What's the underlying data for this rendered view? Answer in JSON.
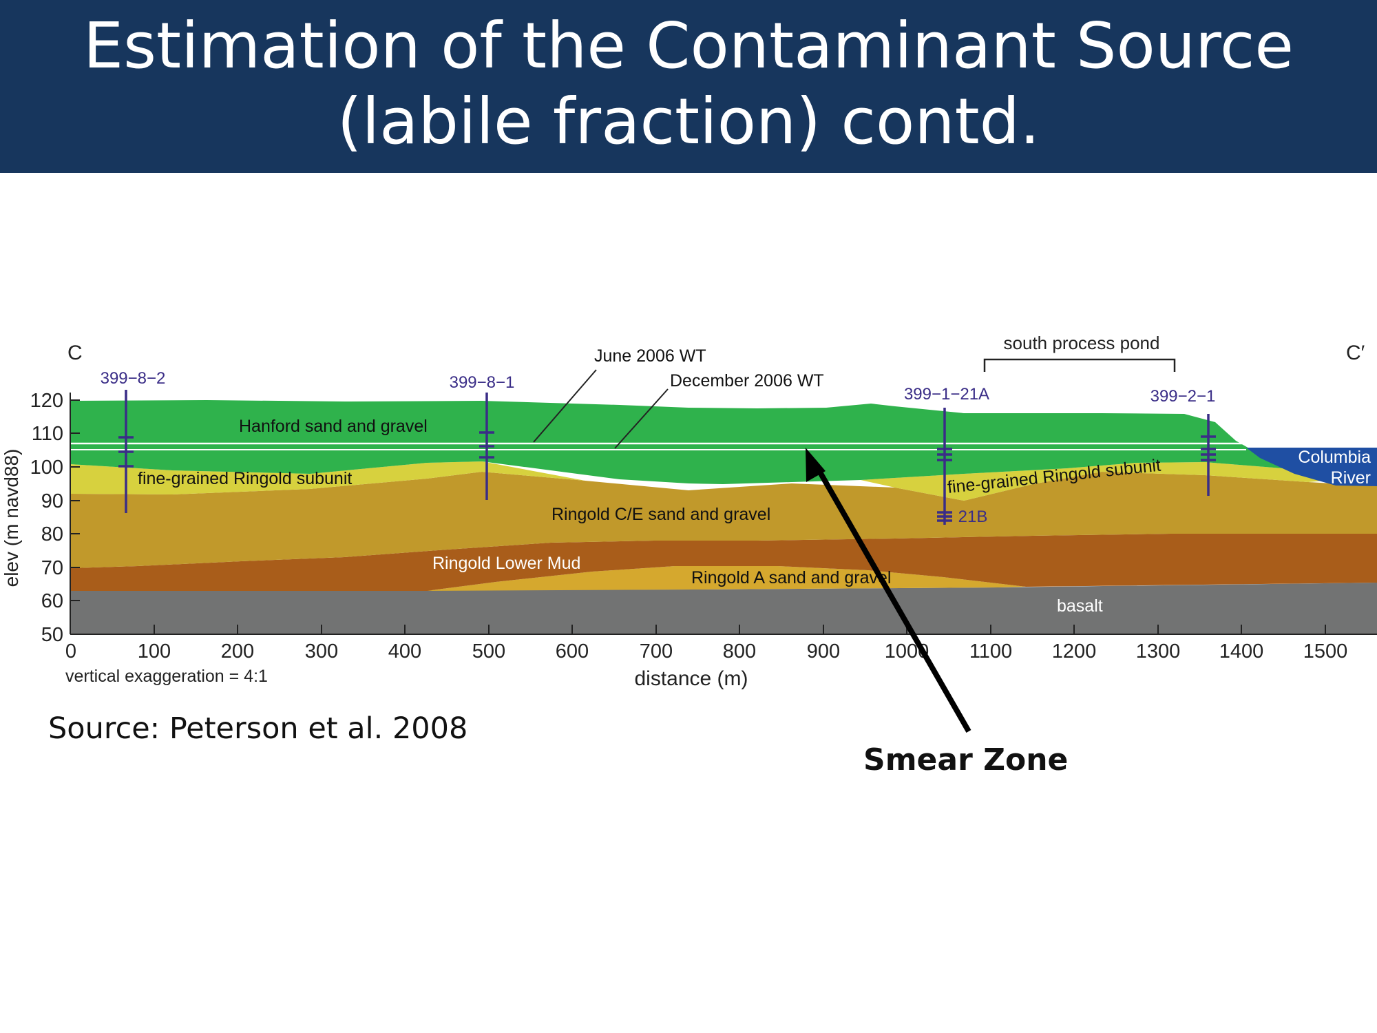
{
  "slide": {
    "title_line1": "Estimation of the Contaminant Source",
    "title_line2": "(labile fraction) contd.",
    "source": "Source: Peterson et al. 2008",
    "callout": "Smear Zone"
  },
  "section": {
    "left_end": "C",
    "right_end": "C′"
  },
  "axes": {
    "ylabel": "elev (m navd88)",
    "xlabel": "distance (m)",
    "exaggeration": "vertical exaggeration = 4:1",
    "x_ticks": [
      "0",
      "100",
      "200",
      "300",
      "400",
      "500",
      "600",
      "700",
      "800",
      "900",
      "1000",
      "1100",
      "1200",
      "1300",
      "1400",
      "1500"
    ],
    "y_ticks": [
      "120",
      "110",
      "100",
      "90",
      "80",
      "70",
      "60",
      "50"
    ],
    "xlim": [
      0,
      1565
    ],
    "ylim": [
      50,
      122
    ]
  },
  "units": {
    "hanford": "Hanford sand and gravel",
    "fine_left": "fine-grained Ringold subunit",
    "fine_right": "fine-grained Ringold subunit",
    "ringold_ce": "Ringold C/E sand and gravel",
    "lower_mud": "Ringold Lower Mud",
    "ringold_a": "Ringold A sand and gravel",
    "basalt": "basalt",
    "river_line1": "Columbia",
    "river_line2": "River"
  },
  "water_table": {
    "june": "June 2006 WT",
    "december": "December 2006 WT",
    "june_elev": 106.5,
    "december_elev": 105
  },
  "pond": {
    "label": "south process pond",
    "from_x": 1100,
    "to_x": 1320
  },
  "wells": [
    {
      "id": "399−8−2",
      "x": 67,
      "top": 123,
      "bottom": 86
    },
    {
      "id": "399−8−1",
      "x": 500,
      "top": 120,
      "bottom": 90
    },
    {
      "id": "399−1−21A",
      "x": 1047,
      "top": 117,
      "bottom": 82,
      "secondary": "21B"
    },
    {
      "id": "399−2−1",
      "x": 1362,
      "top": 116,
      "bottom": 91
    }
  ],
  "colors": {
    "header": "#17365d",
    "hanford": "#2fb24c",
    "fine": "#d7d13e",
    "ringold_ce": "#c1992b",
    "lower_mud": "#a95d1a",
    "ringold_a": "#d5a82e",
    "basalt": "#727373",
    "river": "#1f4fa3",
    "well": "#3a2d87"
  }
}
